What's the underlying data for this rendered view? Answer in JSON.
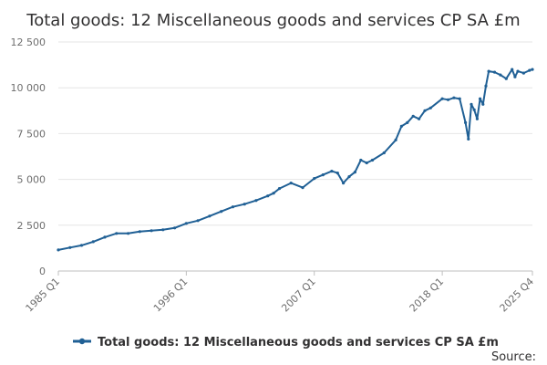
{
  "chart_data": {
    "type": "line",
    "title": "Total goods: 12 Miscellaneous goods and services CP SA £m",
    "xlabel": "",
    "ylabel": "",
    "ylim": [
      0,
      12500
    ],
    "yticks": [
      0,
      2500,
      5000,
      7500,
      10000,
      12500
    ],
    "ytick_labels": [
      "0",
      "2 500",
      "5 000",
      "7 500",
      "10 000",
      "12 500"
    ],
    "xticks": [
      "1985 Q1",
      "1996 Q1",
      "2007 Q1",
      "2018 Q1",
      "2025 Q4"
    ],
    "grid": true,
    "legend_position": "bottom",
    "source_label": "Source:",
    "colors": {
      "series": "#206095",
      "grid": "#e6e6e6",
      "text": "#323132"
    },
    "series": [
      {
        "name": "Total goods: 12 Miscellaneous goods and services CP SA £m",
        "x": [
          "1985 Q1",
          "1986 Q1",
          "1987 Q1",
          "1988 Q1",
          "1989 Q1",
          "1990 Q1",
          "1991 Q1",
          "1992 Q1",
          "1993 Q1",
          "1994 Q1",
          "1995 Q1",
          "1996 Q1",
          "1997 Q1",
          "1998 Q1",
          "1999 Q1",
          "2000 Q1",
          "2001 Q1",
          "2002 Q1",
          "2003 Q1",
          "2003 Q3",
          "2004 Q1",
          "2005 Q1",
          "2006 Q1",
          "2007 Q1",
          "2007 Q4",
          "2008 Q3",
          "2009 Q1",
          "2009 Q3",
          "2010 Q1",
          "2010 Q3",
          "2011 Q1",
          "2011 Q3",
          "2012 Q1",
          "2013 Q1",
          "2014 Q1",
          "2014 Q3",
          "2015 Q1",
          "2015 Q3",
          "2016 Q1",
          "2016 Q3",
          "2017 Q1",
          "2018 Q1",
          "2018 Q3",
          "2019 Q1",
          "2019 Q3",
          "2020 Q1",
          "2020 Q2",
          "2020 Q3",
          "2020 Q4",
          "2021 Q1",
          "2021 Q2",
          "2021 Q3",
          "2021 Q4",
          "2022 Q1",
          "2022 Q3",
          "2023 Q1",
          "2023 Q3",
          "2024 Q1",
          "2024 Q2",
          "2024 Q3",
          "2025 Q1",
          "2025 Q3",
          "2025 Q4"
        ],
        "values": [
          1150,
          1280,
          1400,
          1600,
          1850,
          2050,
          2050,
          2150,
          2200,
          2250,
          2350,
          2600,
          2750,
          3000,
          3250,
          3500,
          3650,
          3850,
          4100,
          4250,
          4500,
          4800,
          4550,
          5050,
          5250,
          5450,
          5350,
          4800,
          5150,
          5400,
          6050,
          5900,
          6050,
          6450,
          7150,
          7900,
          8100,
          8450,
          8300,
          8750,
          8900,
          9400,
          9350,
          9450,
          9400,
          8100,
          7200,
          9100,
          8800,
          8300,
          9400,
          9100,
          10100,
          10900,
          10850,
          10700,
          10500,
          11000,
          10600,
          10900,
          10800,
          10950,
          11000
        ]
      }
    ]
  }
}
